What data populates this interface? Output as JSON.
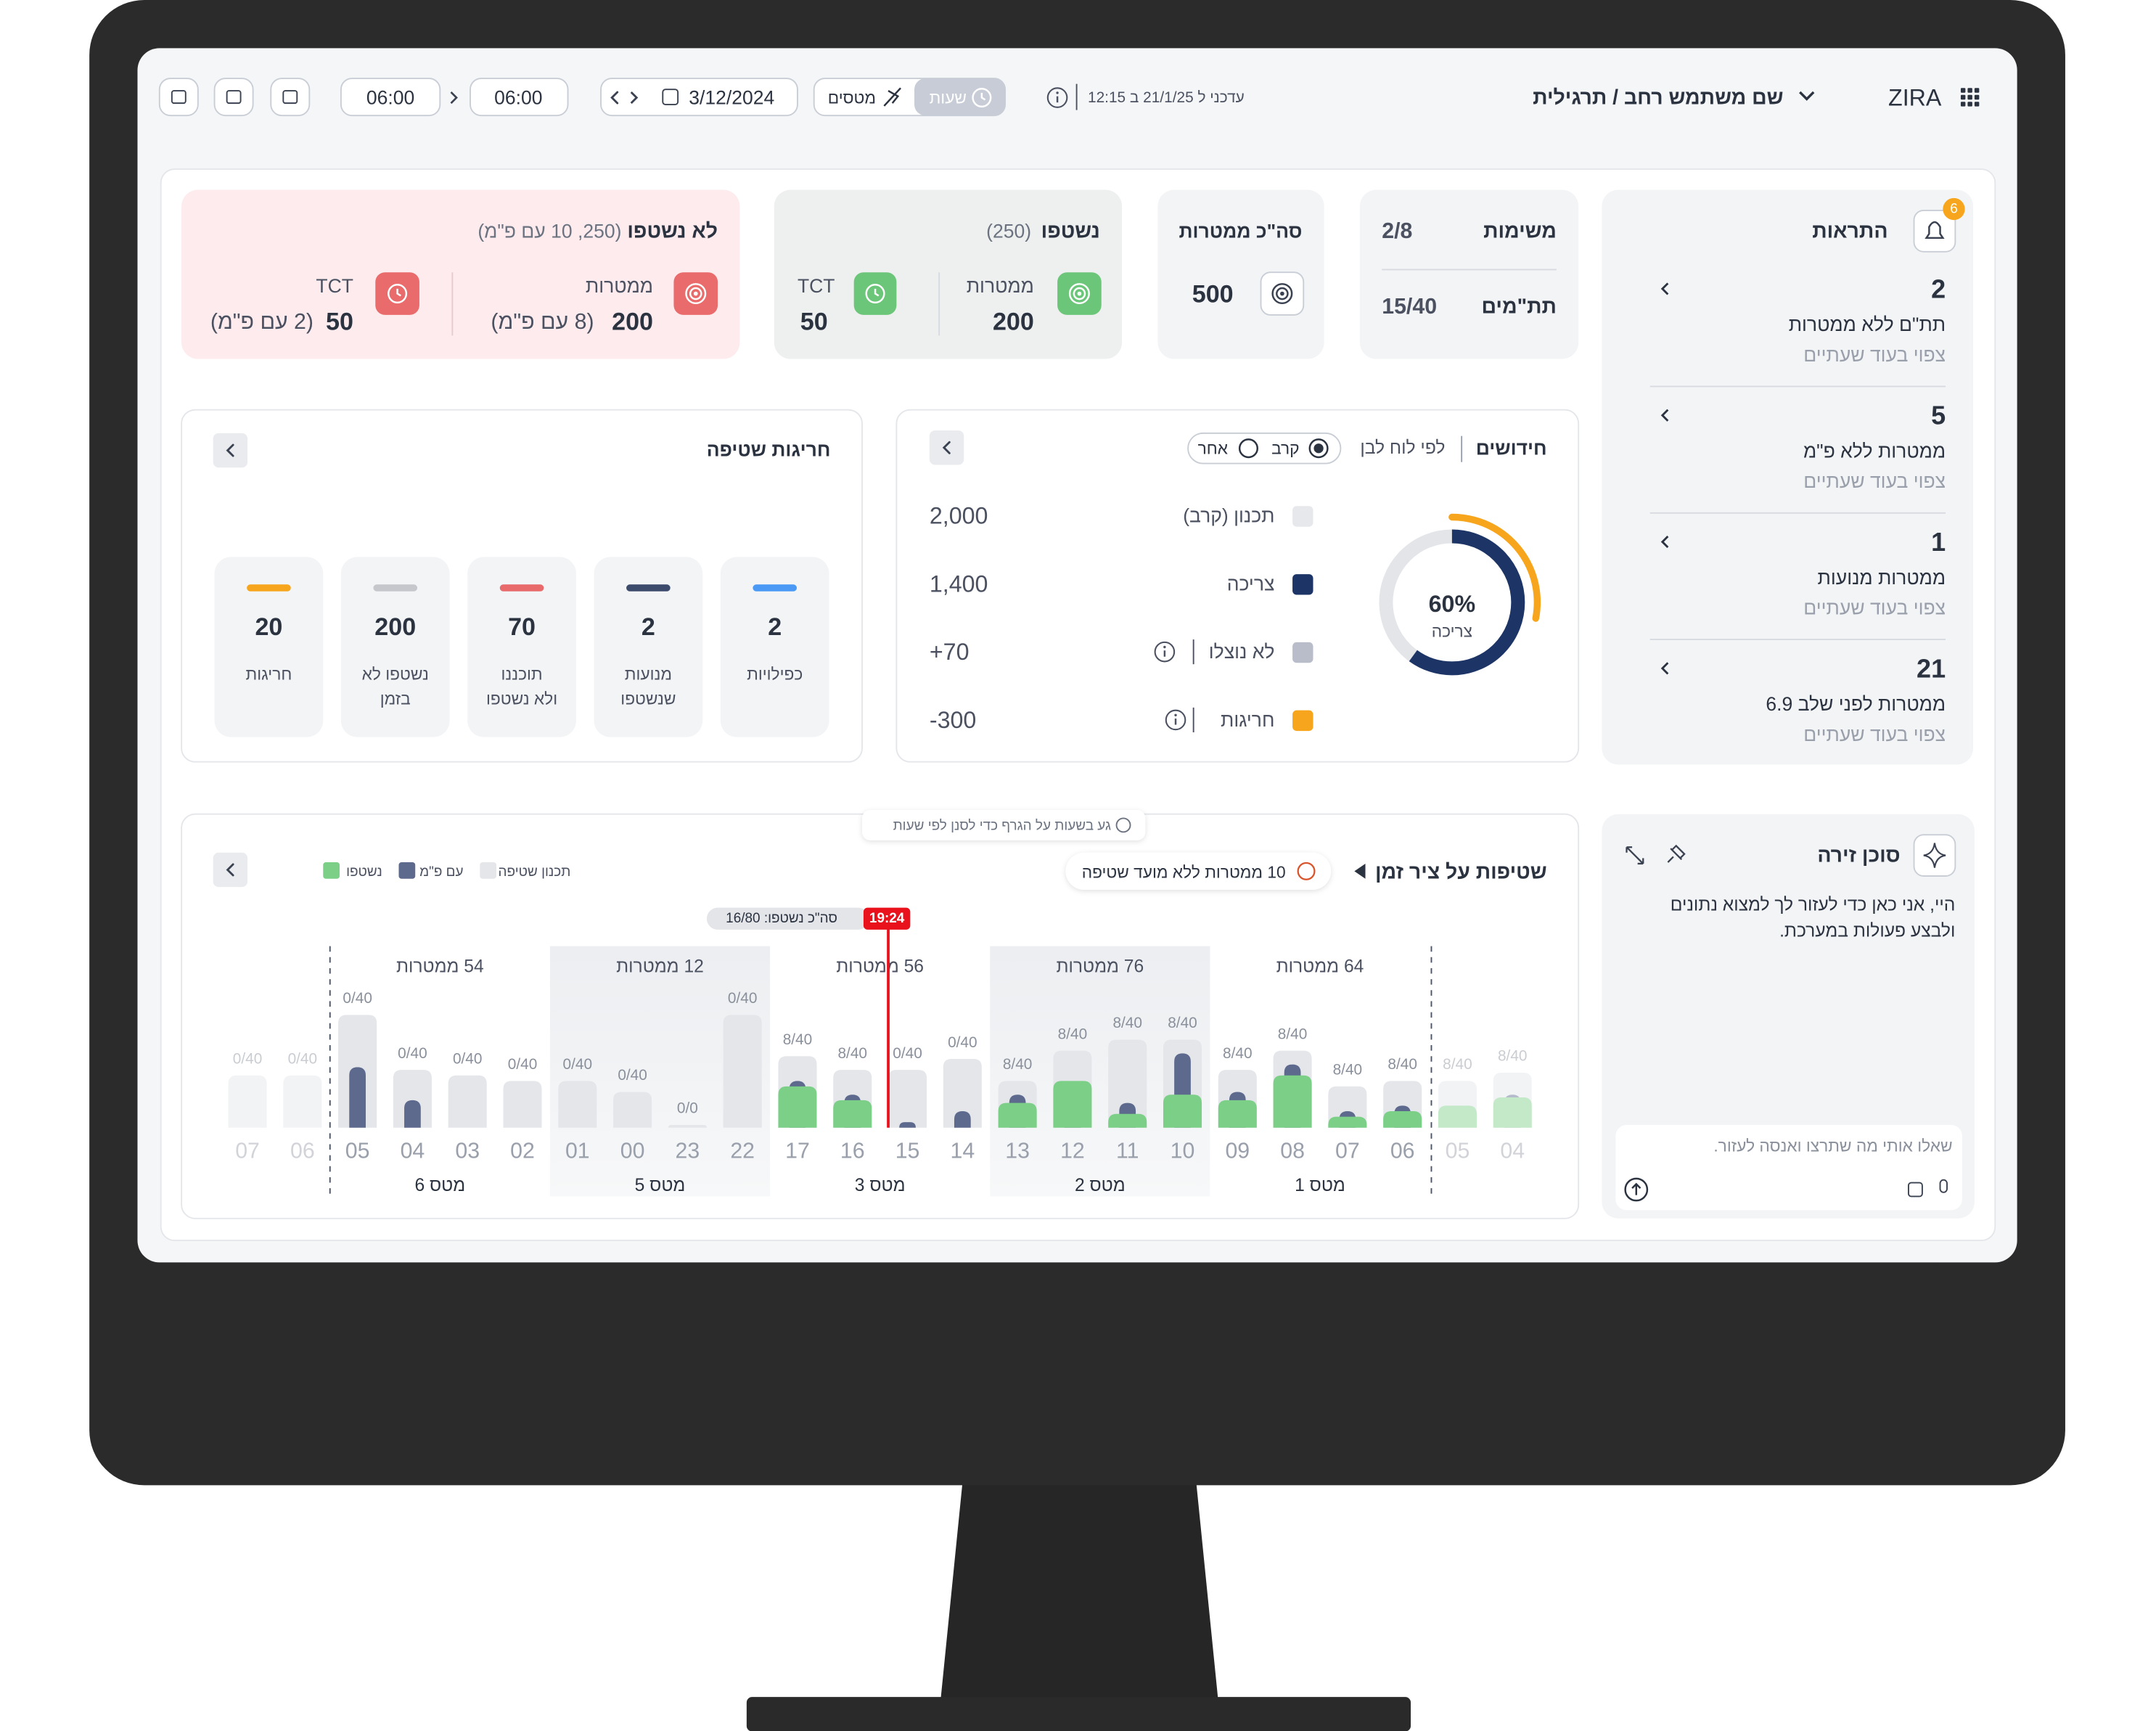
{
  "header": {
    "brand": "ZIRA",
    "user": "שם משתמש רחב / תרגילית",
    "updated": "עדכני ל 21/1/25 ב 12:15",
    "view_tabs": [
      "שעות",
      "מטסים"
    ],
    "date": "3/12/2024",
    "time_start": "06:00",
    "time_end": "06:00"
  },
  "alerts": {
    "title": "התראות",
    "badge": 6,
    "items": [
      {
        "count": 2,
        "title": "תת\"ם ללא ממטרות",
        "note": "צפוי בעוד שעתיים"
      },
      {
        "count": 5,
        "title": "ממטרות ללא פ\"מ",
        "note": "צפוי בעוד שעתיים"
      },
      {
        "count": 1,
        "title": "ממטרות מנועות",
        "note": "צפוי בעוד שעתיים"
      },
      {
        "count": 21,
        "title": "ממטרות לפני שלב 6.9",
        "note": "צפוי בעוד שעתיים"
      }
    ]
  },
  "summary": {
    "tasks": {
      "label": "משימות",
      "value": "2/8"
    },
    "sub_units": {
      "label": "תת\"מים",
      "value": "15/40"
    },
    "total_targets": {
      "label": "סה\"כ ממטרות",
      "value": 500
    },
    "washed": {
      "title": "נשטפו",
      "note": "(250)",
      "targets_label": "ממטרות",
      "targets": 200,
      "tct_label": "TCT",
      "tct": 50
    },
    "not_washed": {
      "title": "לא נשטפו",
      "note": "(250, 10 עם פ\"מ)",
      "targets_label": "ממטרות",
      "targets": 200,
      "targets_note": "(8 עם פ\"מ)",
      "tct_label": "TCT",
      "tct": 50,
      "tct_note": "(2 עם פ\"מ)"
    }
  },
  "renewals": {
    "title": "חידושים",
    "filter": "לפי לוח לבן",
    "options": [
      "קרב",
      "אחר"
    ],
    "donut": {
      "value": 60,
      "label": "60%",
      "caption": "צריכה"
    },
    "rows": [
      {
        "label": "תכנון (קרב)",
        "value": "2,000",
        "color": "#e6e8ec"
      },
      {
        "label": "צריכה",
        "value": "1,400",
        "color": "#1c3466"
      },
      {
        "label": "לא נוצלו",
        "value": "+70",
        "color": "#b8bdc9"
      },
      {
        "label": "חריגות",
        "value": "-300",
        "color": "#f7a51c"
      }
    ]
  },
  "exceptions": {
    "title": "חריגות שטיפה",
    "cards": [
      {
        "value": 2,
        "label": [
          "כפילויות"
        ],
        "color": "#4a9af5"
      },
      {
        "value": 2,
        "label": [
          "מנועות",
          "שנשטפו"
        ],
        "color": "#3c4a6b"
      },
      {
        "value": 70,
        "label": [
          "תוכננו",
          "ולא נשטפו"
        ],
        "color": "#e86a6a"
      },
      {
        "value": 200,
        "label": [
          "נשטפו לא",
          "בזמן"
        ],
        "color": "#c5c7cc"
      },
      {
        "value": 20,
        "label": [
          "חריגות"
        ],
        "color": "#f7a51c"
      }
    ]
  },
  "timeline": {
    "title": "שטיפות על ציר זמן",
    "unscheduled": "10 ממטרות ללא מועד שטיפה",
    "hint": "גע בשעות על הגרף כדי לסנן לפי שעות",
    "legend": [
      {
        "name": "תכנון שטיפה",
        "color": "#e4e6ea"
      },
      {
        "name": "עם פ\"מ",
        "color": "#5d6a8e"
      },
      {
        "name": "נשטפו",
        "color": "#7ccf87"
      }
    ],
    "now": {
      "time": "19:24",
      "summary": "סה\"כ נשטפו: 16/80"
    },
    "groups": [
      {
        "targets": "64 ממטרות",
        "sortie": "מטס 1"
      },
      {
        "targets": "76 ממטרות",
        "sortie": "מטס 2"
      },
      {
        "targets": "56 ממטרות",
        "sortie": "מטס 3"
      },
      {
        "targets": "12 ממטרות",
        "sortie": "מטס 5"
      },
      {
        "targets": "54 ממטרות",
        "sortie": "מטס 6"
      }
    ],
    "bars": [
      {
        "hour": "04",
        "label": "8/40",
        "planned": 20,
        "with_pm": 12,
        "washed": 11
      },
      {
        "hour": "05",
        "label": "8/40",
        "planned": 17,
        "with_pm": 0,
        "washed": 8
      },
      {
        "hour": "06",
        "label": "8/40",
        "planned": 17,
        "with_pm": 8,
        "washed": 6
      },
      {
        "hour": "07",
        "label": "8/40",
        "planned": 15,
        "with_pm": 6,
        "washed": 4
      },
      {
        "hour": "08",
        "label": "8/40",
        "planned": 28,
        "with_pm": 23,
        "washed": 19
      },
      {
        "hour": "09",
        "label": "8/40",
        "planned": 21,
        "with_pm": 13,
        "washed": 10
      },
      {
        "hour": "10",
        "label": "8/40",
        "planned": 32,
        "with_pm": 27,
        "washed": 12
      },
      {
        "hour": "11",
        "label": "8/40",
        "planned": 32,
        "with_pm": 9,
        "washed": 5
      },
      {
        "hour": "12",
        "label": "8/40",
        "planned": 28,
        "with_pm": 15,
        "washed": 17
      },
      {
        "hour": "13",
        "label": "8/40",
        "planned": 17,
        "with_pm": 12,
        "washed": 9
      },
      {
        "hour": "14",
        "label": "0/40",
        "planned": 25,
        "with_pm": 6,
        "washed": 0
      },
      {
        "hour": "15",
        "label": "0/40",
        "planned": 21,
        "with_pm": 2,
        "washed": 0
      },
      {
        "hour": "16",
        "label": "8/40",
        "planned": 21,
        "with_pm": 12,
        "washed": 10
      },
      {
        "hour": "17",
        "label": "8/40",
        "planned": 26,
        "with_pm": 17,
        "washed": 15
      },
      {
        "hour": "22",
        "label": "0/40",
        "planned": 41,
        "with_pm": 0,
        "washed": 0
      },
      {
        "hour": "23",
        "label": "0/0",
        "planned": 1,
        "with_pm": 0,
        "washed": 0
      },
      {
        "hour": "00",
        "label": "0/40",
        "planned": 13,
        "with_pm": 0,
        "washed": 0
      },
      {
        "hour": "01",
        "label": "0/40",
        "planned": 17,
        "with_pm": 0,
        "washed": 0
      },
      {
        "hour": "02",
        "label": "0/40",
        "planned": 17,
        "with_pm": 0,
        "washed": 0
      },
      {
        "hour": "03",
        "label": "0/40",
        "planned": 19,
        "with_pm": 0,
        "washed": 0
      },
      {
        "hour": "04",
        "label": "0/40",
        "planned": 21,
        "with_pm": 10,
        "washed": 0
      },
      {
        "hour": "05",
        "label": "0/40",
        "planned": 41,
        "with_pm": 22,
        "washed": 0
      },
      {
        "hour": "06",
        "label": "0/40",
        "planned": 19,
        "with_pm": 0,
        "washed": 0
      },
      {
        "hour": "07",
        "label": "0/40",
        "planned": 19,
        "with_pm": 0,
        "washed": 0
      }
    ]
  },
  "assistant": {
    "title": "סוכן זירה",
    "message": [
      "היי, אני כאן כדי לעזור לך למצוא נתונים",
      "ולבצע פעולות במערכת."
    ],
    "placeholder": "שאלו אותי מה שתרצו ואנסה לעזור."
  }
}
